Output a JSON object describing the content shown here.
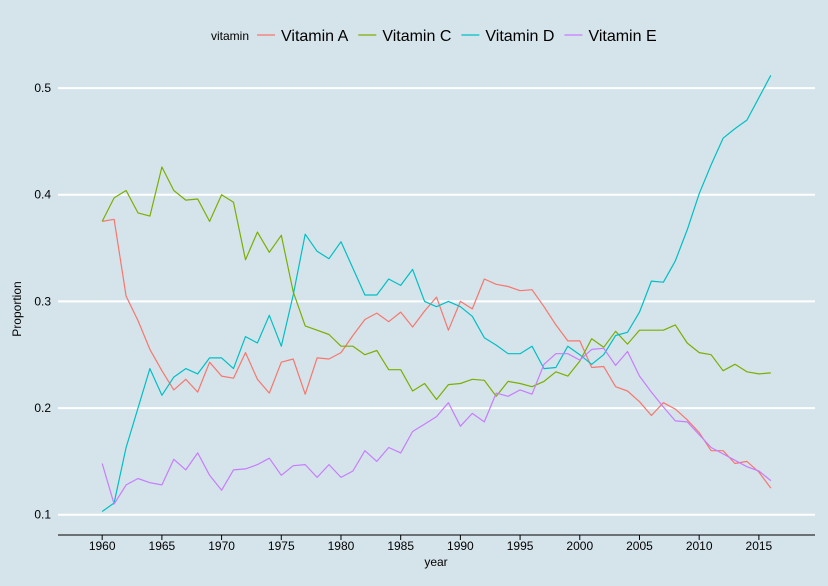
{
  "colors": {
    "background": "#d5e4eb",
    "grid": "#ffffff",
    "axis": "#000000"
  },
  "legend": {
    "title": "vitamin",
    "position": "top"
  },
  "chart_data": {
    "type": "line",
    "xlabel": "year",
    "ylabel": "Proportion",
    "xlim": [
      1956.3,
      2019.7
    ],
    "ylim": [
      0.081,
      0.531
    ],
    "xticks": [
      1960,
      1965,
      1970,
      1975,
      1980,
      1985,
      1990,
      1995,
      2000,
      2005,
      2010,
      2015
    ],
    "yticks": [
      0.1,
      0.2,
      0.3,
      0.4,
      0.5
    ],
    "ytick_labels": [
      "0.1",
      "0.2",
      "0.3",
      "0.4",
      "0.5"
    ],
    "grid": "horizontal",
    "x": [
      1960,
      1961,
      1962,
      1963,
      1964,
      1965,
      1966,
      1967,
      1968,
      1969,
      1970,
      1971,
      1972,
      1973,
      1974,
      1975,
      1976,
      1977,
      1978,
      1979,
      1980,
      1981,
      1982,
      1983,
      1984,
      1985,
      1986,
      1987,
      1988,
      1989,
      1990,
      1991,
      1992,
      1993,
      1994,
      1995,
      1996,
      1997,
      1998,
      1999,
      2000,
      2001,
      2002,
      2003,
      2004,
      2005,
      2006,
      2007,
      2008,
      2009,
      2010,
      2011,
      2012,
      2013,
      2014,
      2015,
      2016
    ],
    "series": [
      {
        "name": "Vitamin A",
        "color": "#f8766d",
        "values": [
          0.375,
          0.377,
          0.305,
          0.282,
          0.255,
          0.235,
          0.217,
          0.227,
          0.215,
          0.243,
          0.23,
          0.228,
          0.252,
          0.227,
          0.214,
          0.243,
          0.246,
          0.213,
          0.247,
          0.246,
          0.252,
          0.268,
          0.283,
          0.289,
          0.281,
          0.29,
          0.276,
          0.291,
          0.304,
          0.273,
          0.3,
          0.293,
          0.321,
          0.316,
          0.314,
          0.31,
          0.311,
          0.295,
          0.278,
          0.263,
          0.263,
          0.238,
          0.239,
          0.22,
          0.216,
          0.206,
          0.193,
          0.205,
          0.199,
          0.189,
          0.177,
          0.16,
          0.16,
          0.148,
          0.15,
          0.14,
          0.125
        ]
      },
      {
        "name": "Vitamin C",
        "color": "#7cae00",
        "values": [
          0.375,
          0.397,
          0.404,
          0.383,
          0.38,
          0.426,
          0.404,
          0.395,
          0.396,
          0.375,
          0.4,
          0.393,
          0.339,
          0.365,
          0.346,
          0.362,
          0.309,
          0.277,
          0.273,
          0.269,
          0.258,
          0.258,
          0.25,
          0.254,
          0.236,
          0.236,
          0.216,
          0.223,
          0.208,
          0.222,
          0.223,
          0.227,
          0.226,
          0.211,
          0.225,
          0.223,
          0.22,
          0.225,
          0.234,
          0.23,
          0.244,
          0.265,
          0.257,
          0.272,
          0.26,
          0.273,
          0.273,
          0.273,
          0.278,
          0.261,
          0.252,
          0.25,
          0.235,
          0.241,
          0.234,
          0.232,
          0.233
        ]
      },
      {
        "name": "Vitamin D",
        "color": "#00bfc4",
        "values": [
          0.103,
          0.111,
          0.163,
          0.2,
          0.237,
          0.212,
          0.229,
          0.237,
          0.232,
          0.247,
          0.247,
          0.237,
          0.267,
          0.261,
          0.287,
          0.258,
          0.306,
          0.363,
          0.347,
          0.34,
          0.356,
          0.331,
          0.306,
          0.306,
          0.321,
          0.315,
          0.33,
          0.3,
          0.295,
          0.3,
          0.295,
          0.286,
          0.266,
          0.259,
          0.251,
          0.251,
          0.258,
          0.237,
          0.238,
          0.258,
          0.25,
          0.241,
          0.25,
          0.268,
          0.271,
          0.29,
          0.319,
          0.318,
          0.338,
          0.367,
          0.401,
          0.428,
          0.453,
          0.462,
          0.47,
          0.491,
          0.512
        ]
      },
      {
        "name": "Vitamin E",
        "color": "#c77cff",
        "values": [
          0.148,
          0.11,
          0.128,
          0.134,
          0.13,
          0.128,
          0.152,
          0.142,
          0.158,
          0.137,
          0.123,
          0.142,
          0.143,
          0.147,
          0.153,
          0.137,
          0.146,
          0.147,
          0.135,
          0.147,
          0.135,
          0.141,
          0.16,
          0.15,
          0.163,
          0.158,
          0.178,
          0.185,
          0.192,
          0.205,
          0.183,
          0.195,
          0.187,
          0.214,
          0.211,
          0.217,
          0.213,
          0.241,
          0.251,
          0.251,
          0.245,
          0.255,
          0.256,
          0.24,
          0.253,
          0.23,
          0.215,
          0.201,
          0.188,
          0.187,
          0.175,
          0.163,
          0.157,
          0.151,
          0.145,
          0.141,
          0.132
        ]
      }
    ]
  }
}
